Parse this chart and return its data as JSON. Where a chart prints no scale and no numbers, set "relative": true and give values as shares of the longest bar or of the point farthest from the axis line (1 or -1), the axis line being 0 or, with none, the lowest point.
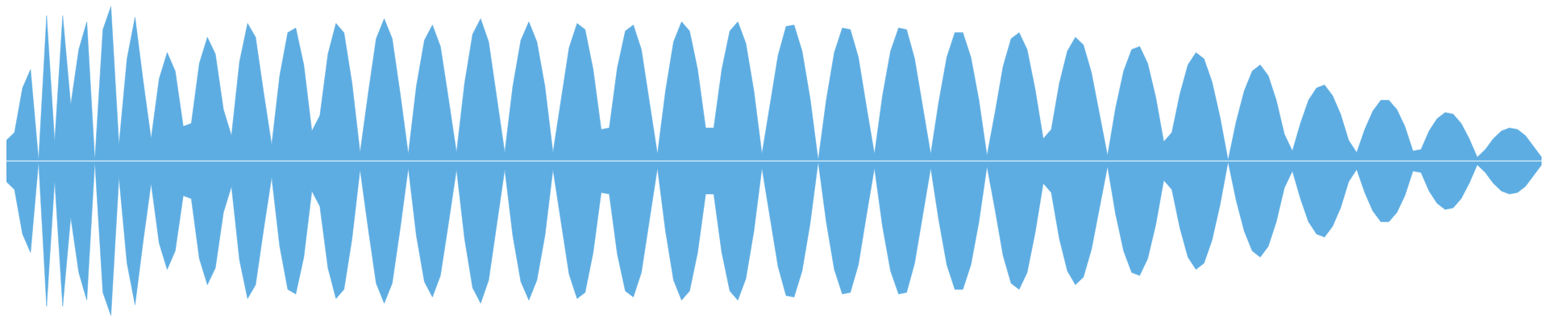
{
  "chart_data": [
    {
      "type": "area",
      "relative": true,
      "categories": [
        null,
        null,
        null,
        null,
        null,
        null,
        null,
        null,
        null,
        null,
        null,
        null,
        null,
        null,
        null,
        null,
        null,
        null,
        null,
        null,
        null,
        null,
        null,
        null,
        null,
        null,
        null,
        null,
        null,
        null,
        null,
        null,
        null,
        null,
        null,
        null,
        null,
        null,
        null,
        null,
        null,
        null,
        null,
        null,
        null,
        null,
        null,
        null,
        null,
        null,
        null,
        null,
        null,
        null,
        null,
        null,
        null,
        null,
        null,
        null,
        null,
        null,
        null,
        null,
        null,
        null,
        null,
        null,
        null,
        null,
        null,
        null,
        null,
        null,
        null,
        null,
        null,
        null,
        null,
        null,
        null,
        null,
        null,
        null,
        null,
        null,
        null,
        null,
        null,
        null,
        null,
        null,
        null,
        null,
        null,
        null,
        null,
        null,
        null,
        null,
        null,
        null,
        null,
        null,
        null,
        null,
        null,
        null,
        null,
        null,
        null,
        null,
        null,
        null,
        null,
        null,
        null,
        null,
        null,
        null,
        null,
        null,
        null,
        null,
        null,
        null,
        null,
        null,
        null,
        null,
        null,
        null,
        null,
        null,
        null,
        null,
        null,
        null,
        null,
        null,
        null,
        null,
        null,
        null,
        null,
        null,
        null,
        null,
        null,
        null,
        null,
        null,
        null,
        null,
        null,
        null,
        null,
        null,
        null,
        null,
        null,
        null,
        null,
        null,
        null,
        null,
        null,
        null,
        null,
        null,
        null,
        null,
        null,
        null,
        null,
        null,
        null,
        null,
        null,
        null,
        null,
        null,
        null,
        null,
        null,
        null,
        null,
        null,
        null,
        null,
        null,
        null
      ],
      "series": [
        {
          "color": "#5dade2",
          "values": [
            0.13,
            0.18,
            0.47,
            0.59,
            0,
            0.94,
            0.12,
            0.94,
            0.36,
            0.72,
            0.9,
            0,
            0.85,
            1,
            0.1,
            0.66,
            0.93,
            0.52,
            0.14,
            0.53,
            0.7,
            0.58,
            0.22,
            0.24,
            0.63,
            0.8,
            0.69,
            0.33,
            0.16,
            0.64,
            0.89,
            0.8,
            0.44,
            0.1,
            0.55,
            0.83,
            0.86,
            0.62,
            0.19,
            0.29,
            0.69,
            0.89,
            0.83,
            0.5,
            0.05,
            0.43,
            0.79,
            0.92,
            0.79,
            0.43,
            0.04,
            0.48,
            0.78,
            0.88,
            0.74,
            0.4,
            0.05,
            0.5,
            0.82,
            0.92,
            0.77,
            0.41,
            0.05,
            0.48,
            0.78,
            0.9,
            0.77,
            0.48,
            0.05,
            0.39,
            0.73,
            0.89,
            0.85,
            0.59,
            0.2,
            0.21,
            0.6,
            0.84,
            0.88,
            0.72,
            0.38,
            0.04,
            0.45,
            0.77,
            0.9,
            0.84,
            0.59,
            0.21,
            0.21,
            0.59,
            0.84,
            0.9,
            0.76,
            0.45,
            0.04,
            0.36,
            0.68,
            0.87,
            0.88,
            0.71,
            0.4,
            0,
            0.39,
            0.7,
            0.86,
            0.85,
            0.67,
            0.35,
            0.04,
            0.42,
            0.71,
            0.86,
            0.85,
            0.66,
            0.35,
            0.04,
            0.38,
            0.67,
            0.83,
            0.83,
            0.67,
            0.39,
            0.03,
            0.31,
            0.61,
            0.79,
            0.83,
            0.72,
            0.46,
            0.14,
            0.2,
            0.5,
            0.71,
            0.8,
            0.75,
            0.57,
            0.3,
            0.03,
            0.34,
            0.58,
            0.72,
            0.74,
            0.63,
            0.41,
            0.12,
            0.18,
            0.43,
            0.62,
            0.7,
            0.66,
            0.51,
            0.28,
            0,
            0.25,
            0.45,
            0.58,
            0.62,
            0.55,
            0.39,
            0.17,
            0.06,
            0.24,
            0.39,
            0.47,
            0.49,
            0.42,
            0.3,
            0.13,
            0.05,
            0.2,
            0.32,
            0.39,
            0.39,
            0.33,
            0.22,
            0.06,
            0.07,
            0.19,
            0.27,
            0.31,
            0.3,
            0.24,
            0.14,
            0.02,
            0.07,
            0.14,
            0.19,
            0.21,
            0.2,
            0.16,
            0.09,
            0.02
          ]
        }
      ]
    },
    {
      "type": "area",
      "relative": true,
      "categories": [
        null,
        null,
        null,
        null,
        null,
        null,
        null,
        null,
        null,
        null,
        null,
        null,
        null,
        null,
        null,
        null,
        null,
        null,
        null,
        null,
        null,
        null,
        null,
        null,
        null,
        null,
        null,
        null,
        null,
        null,
        null,
        null,
        null,
        null,
        null,
        null,
        null,
        null,
        null,
        null,
        null,
        null,
        null,
        null,
        null,
        null,
        null,
        null,
        null,
        null,
        null,
        null,
        null,
        null,
        null,
        null,
        null,
        null,
        null,
        null,
        null,
        null,
        null,
        null,
        null,
        null,
        null,
        null,
        null,
        null,
        null,
        null,
        null,
        null,
        null,
        null,
        null,
        null,
        null,
        null,
        null,
        null,
        null,
        null,
        null,
        null,
        null,
        null,
        null,
        null,
        null,
        null,
        null,
        null,
        null,
        null,
        null,
        null,
        null,
        null,
        null,
        null,
        null,
        null,
        null,
        null,
        null,
        null,
        null,
        null,
        null,
        null,
        null,
        null,
        null,
        null,
        null,
        null,
        null,
        null,
        null,
        null,
        null,
        null,
        null,
        null,
        null,
        null,
        null,
        null,
        null,
        null,
        null,
        null,
        null,
        null,
        null,
        null,
        null,
        null,
        null,
        null,
        null,
        null,
        null,
        null,
        null,
        null,
        null,
        null,
        null,
        null,
        null,
        null,
        null,
        null,
        null,
        null,
        null,
        null,
        null,
        null,
        null,
        null,
        null,
        null,
        null,
        null,
        null,
        null,
        null,
        null,
        null,
        null,
        null,
        null,
        null,
        null,
        null,
        null,
        null,
        null,
        null,
        null,
        null,
        null,
        null,
        null,
        null,
        null,
        null,
        null
      ],
      "series": [
        {
          "color": "#5dade2",
          "values": [
            -0.13,
            -0.18,
            -0.47,
            -0.59,
            0,
            -0.94,
            -0.12,
            -0.94,
            -0.36,
            -0.72,
            -0.9,
            0,
            -0.85,
            -1,
            -0.1,
            -0.66,
            -0.93,
            -0.52,
            -0.14,
            -0.53,
            -0.7,
            -0.58,
            -0.22,
            -0.24,
            -0.63,
            -0.8,
            -0.69,
            -0.33,
            -0.16,
            -0.64,
            -0.89,
            -0.8,
            -0.44,
            -0.1,
            -0.55,
            -0.83,
            -0.86,
            -0.62,
            -0.19,
            -0.29,
            -0.69,
            -0.89,
            -0.83,
            -0.5,
            -0.05,
            -0.43,
            -0.79,
            -0.92,
            -0.79,
            -0.43,
            -0.04,
            -0.48,
            -0.78,
            -0.88,
            -0.74,
            -0.4,
            -0.05,
            -0.5,
            -0.82,
            -0.92,
            -0.77,
            -0.41,
            -0.05,
            -0.48,
            -0.78,
            -0.9,
            -0.77,
            -0.48,
            -0.05,
            -0.39,
            -0.73,
            -0.89,
            -0.85,
            -0.59,
            -0.2,
            -0.21,
            -0.6,
            -0.84,
            -0.88,
            -0.72,
            -0.38,
            -0.04,
            -0.45,
            -0.77,
            -0.9,
            -0.84,
            -0.59,
            -0.21,
            -0.21,
            -0.59,
            -0.84,
            -0.9,
            -0.76,
            -0.45,
            -0.04,
            -0.36,
            -0.68,
            -0.87,
            -0.88,
            -0.71,
            -0.4,
            0,
            -0.39,
            -0.7,
            -0.86,
            -0.85,
            -0.67,
            -0.35,
            -0.04,
            -0.42,
            -0.71,
            -0.86,
            -0.85,
            -0.66,
            -0.35,
            -0.04,
            -0.38,
            -0.67,
            -0.83,
            -0.83,
            -0.67,
            -0.39,
            -0.03,
            -0.31,
            -0.61,
            -0.79,
            -0.83,
            -0.72,
            -0.46,
            -0.14,
            -0.2,
            -0.5,
            -0.71,
            -0.8,
            -0.75,
            -0.57,
            -0.3,
            -0.03,
            -0.34,
            -0.58,
            -0.72,
            -0.74,
            -0.63,
            -0.41,
            -0.12,
            -0.18,
            -0.43,
            -0.62,
            -0.7,
            -0.66,
            -0.51,
            -0.28,
            0,
            -0.25,
            -0.45,
            -0.58,
            -0.62,
            -0.55,
            -0.39,
            -0.17,
            -0.06,
            -0.24,
            -0.39,
            -0.47,
            -0.49,
            -0.42,
            -0.3,
            -0.13,
            -0.05,
            -0.2,
            -0.32,
            -0.39,
            -0.39,
            -0.33,
            -0.22,
            -0.06,
            -0.07,
            -0.19,
            -0.27,
            -0.31,
            -0.3,
            -0.24,
            -0.14,
            -0.02,
            -0.07,
            -0.14,
            -0.19,
            -0.21,
            -0.2,
            -0.16,
            -0.09,
            -0.02
          ]
        }
      ]
    }
  ]
}
